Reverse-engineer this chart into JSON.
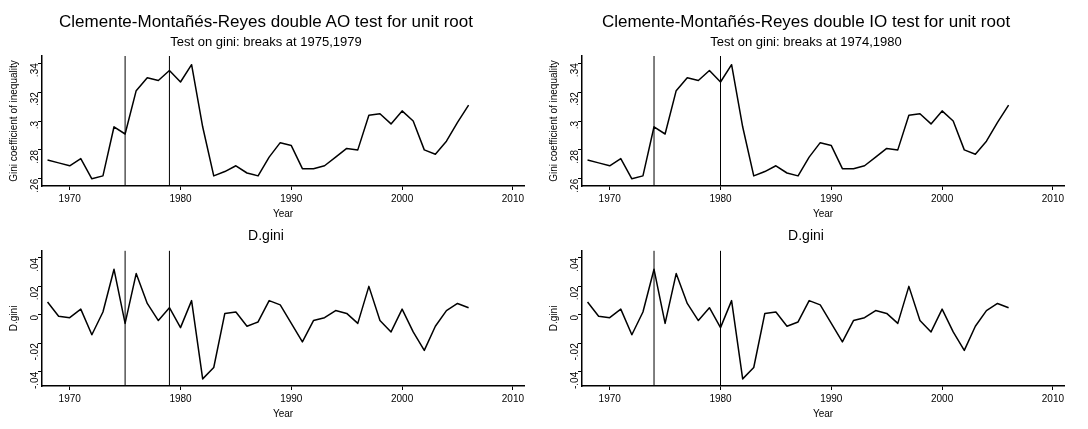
{
  "chart_data": [
    {
      "type": "line",
      "title": "Clemente-Montañés-Reyes double AO test for unit root",
      "subtitle": "Test on gini: breaks at 1975,1979",
      "xlabel": "Year",
      "ylabel": "Gini coefficient of inequality",
      "color": "#000000",
      "x": [
        1968,
        1969,
        1970,
        1971,
        1972,
        1973,
        1974,
        1975,
        1976,
        1977,
        1978,
        1979,
        1980,
        1981,
        1982,
        1983,
        1984,
        1985,
        1986,
        1987,
        1988,
        1989,
        1990,
        1991,
        1992,
        1993,
        1994,
        1995,
        1996,
        1997,
        1998,
        1999,
        2000,
        2001,
        2002,
        2003,
        2004,
        2005,
        2006
      ],
      "values": [
        0.273,
        0.271,
        0.269,
        0.274,
        0.26,
        0.262,
        0.296,
        0.291,
        0.321,
        0.33,
        0.328,
        0.335,
        0.327,
        0.339,
        0.296,
        0.262,
        0.265,
        0.269,
        0.264,
        0.262,
        0.275,
        0.285,
        0.283,
        0.267,
        0.267,
        0.269,
        0.275,
        0.281,
        0.28,
        0.304,
        0.305,
        0.298,
        0.307,
        0.3,
        0.28,
        0.277,
        0.286,
        0.299,
        0.311
      ],
      "xlim": [
        1967.5,
        2011
      ],
      "xticks": [
        1970,
        1980,
        1990,
        2000,
        2010
      ],
      "ylim": [
        0.255,
        0.345
      ],
      "yticks": [
        {
          "value": 0.26,
          "label": ".26"
        },
        {
          "value": 0.28,
          "label": ".28"
        },
        {
          "value": 0.3,
          "label": ".3"
        },
        {
          "value": 0.32,
          "label": ".32"
        },
        {
          "value": 0.34,
          "label": ".34"
        }
      ],
      "ref_lines": [
        {
          "axis": "x",
          "value": 1975,
          "color": "#000000"
        },
        {
          "axis": "x",
          "value": 1979,
          "color": "#000000"
        }
      ]
    },
    {
      "type": "line",
      "title": "D.gini",
      "xlabel": "Year",
      "ylabel": "D.gini",
      "color": "#000000",
      "x": [
        1968,
        1969,
        1970,
        1971,
        1972,
        1973,
        1974,
        1975,
        1976,
        1977,
        1978,
        1979,
        1980,
        1981,
        1982,
        1983,
        1984,
        1985,
        1986,
        1987,
        1988,
        1989,
        1990,
        1991,
        1992,
        1993,
        1994,
        1995,
        1996,
        1997,
        1998,
        1999,
        2000,
        2001,
        2002,
        2003,
        2004,
        2005,
        2006
      ],
      "values": [
        0.009,
        -0.001,
        -0.002,
        0.004,
        -0.014,
        0.002,
        0.032,
        -0.006,
        0.029,
        0.008,
        -0.004,
        0.005,
        -0.009,
        0.01,
        -0.045,
        -0.037,
        0.001,
        0.002,
        -0.008,
        -0.005,
        0.01,
        0.007,
        -0.006,
        -0.019,
        -0.004,
        -0.002,
        0.003,
        0.001,
        -0.006,
        0.02,
        -0.004,
        -0.012,
        0.004,
        -0.012,
        -0.025,
        -0.008,
        0.003,
        0.008,
        0.005
      ],
      "xlim": [
        1967.5,
        2011
      ],
      "xticks": [
        1970,
        1980,
        1990,
        2000,
        2010
      ],
      "ylim": [
        -0.05,
        0.045
      ],
      "yticks": [
        {
          "value": -0.04,
          "label": "-.04"
        },
        {
          "value": -0.02,
          "label": "-.02"
        },
        {
          "value": 0,
          "label": "0"
        },
        {
          "value": 0.02,
          "label": ".02"
        },
        {
          "value": 0.04,
          "label": ".04"
        }
      ],
      "ref_lines": [
        {
          "axis": "x",
          "value": 1975,
          "color": "#000000"
        },
        {
          "axis": "x",
          "value": 1979,
          "color": "#000000"
        }
      ]
    },
    {
      "type": "line",
      "title": "Clemente-Montañés-Reyes double IO test for unit root",
      "subtitle": "Test on gini: breaks at 1974,1980",
      "xlabel": "Year",
      "ylabel": "Gini coefficient of inequality",
      "color": "#000000",
      "x": [
        1968,
        1969,
        1970,
        1971,
        1972,
        1973,
        1974,
        1975,
        1976,
        1977,
        1978,
        1979,
        1980,
        1981,
        1982,
        1983,
        1984,
        1985,
        1986,
        1987,
        1988,
        1989,
        1990,
        1991,
        1992,
        1993,
        1994,
        1995,
        1996,
        1997,
        1998,
        1999,
        2000,
        2001,
        2002,
        2003,
        2004,
        2005,
        2006
      ],
      "values": [
        0.273,
        0.271,
        0.269,
        0.274,
        0.26,
        0.262,
        0.296,
        0.291,
        0.321,
        0.33,
        0.328,
        0.335,
        0.327,
        0.339,
        0.296,
        0.262,
        0.265,
        0.269,
        0.264,
        0.262,
        0.275,
        0.285,
        0.283,
        0.267,
        0.267,
        0.269,
        0.275,
        0.281,
        0.28,
        0.304,
        0.305,
        0.298,
        0.307,
        0.3,
        0.28,
        0.277,
        0.286,
        0.299,
        0.311
      ],
      "xlim": [
        1967.5,
        2011
      ],
      "xticks": [
        1970,
        1980,
        1990,
        2000,
        2010
      ],
      "ylim": [
        0.255,
        0.345
      ],
      "yticks": [
        {
          "value": 0.26,
          "label": ".26"
        },
        {
          "value": 0.28,
          "label": ".28"
        },
        {
          "value": 0.3,
          "label": ".3"
        },
        {
          "value": 0.32,
          "label": ".32"
        },
        {
          "value": 0.34,
          "label": ".34"
        }
      ],
      "ref_lines": [
        {
          "axis": "x",
          "value": 1974,
          "color": "#000000"
        },
        {
          "axis": "x",
          "value": 1980,
          "color": "#000000"
        }
      ]
    },
    {
      "type": "line",
      "title": "D.gini",
      "xlabel": "Year",
      "ylabel": "D.gini",
      "color": "#000000",
      "x": [
        1968,
        1969,
        1970,
        1971,
        1972,
        1973,
        1974,
        1975,
        1976,
        1977,
        1978,
        1979,
        1980,
        1981,
        1982,
        1983,
        1984,
        1985,
        1986,
        1987,
        1988,
        1989,
        1990,
        1991,
        1992,
        1993,
        1994,
        1995,
        1996,
        1997,
        1998,
        1999,
        2000,
        2001,
        2002,
        2003,
        2004,
        2005,
        2006
      ],
      "values": [
        0.009,
        -0.001,
        -0.002,
        0.004,
        -0.014,
        0.002,
        0.032,
        -0.006,
        0.029,
        0.008,
        -0.004,
        0.005,
        -0.009,
        0.01,
        -0.045,
        -0.037,
        0.001,
        0.002,
        -0.008,
        -0.005,
        0.01,
        0.007,
        -0.006,
        -0.019,
        -0.004,
        -0.002,
        0.003,
        0.001,
        -0.006,
        0.02,
        -0.004,
        -0.012,
        0.004,
        -0.012,
        -0.025,
        -0.008,
        0.003,
        0.008,
        0.005
      ],
      "xlim": [
        1967.5,
        2011
      ],
      "xticks": [
        1970,
        1980,
        1990,
        2000,
        2010
      ],
      "ylim": [
        -0.05,
        0.045
      ],
      "yticks": [
        {
          "value": -0.04,
          "label": "-.04"
        },
        {
          "value": -0.02,
          "label": "-.02"
        },
        {
          "value": 0,
          "label": "0"
        },
        {
          "value": 0.02,
          "label": ".02"
        },
        {
          "value": 0.04,
          "label": ".04"
        }
      ],
      "ref_lines": [
        {
          "axis": "x",
          "value": 1974,
          "color": "#000000"
        },
        {
          "axis": "x",
          "value": 1980,
          "color": "#000000"
        }
      ]
    }
  ]
}
